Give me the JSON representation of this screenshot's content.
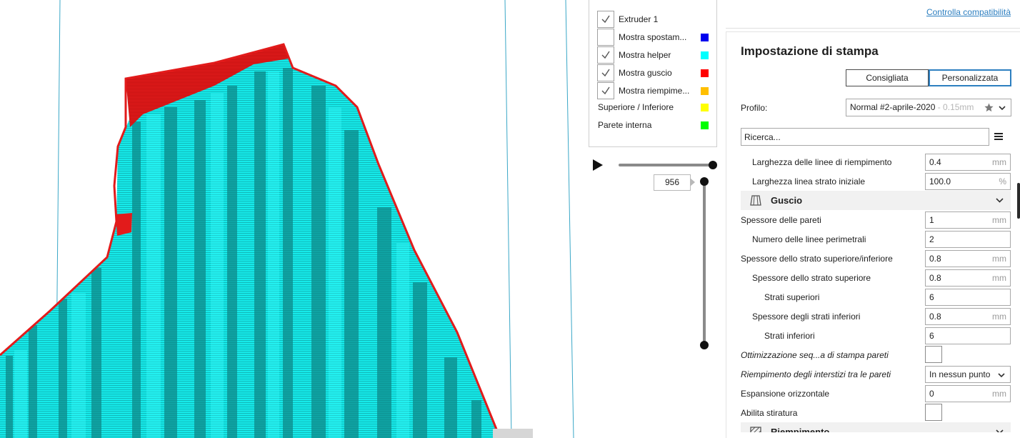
{
  "legend": {
    "items": [
      {
        "label": "Extruder 1",
        "checked": true,
        "color": ""
      },
      {
        "label": "Mostra spostam...",
        "checked": false,
        "color": "#0000ee"
      },
      {
        "label": "Mostra helper",
        "checked": true,
        "color": "#00ffff"
      },
      {
        "label": "Mostra guscio",
        "checked": true,
        "color": "#ff0000"
      },
      {
        "label": "Mostra riempime...",
        "checked": true,
        "color": "#ffbf00"
      }
    ],
    "static_items": [
      {
        "label": "Superiore / Inferiore",
        "color": "#ffff00"
      },
      {
        "label": "Parete interna",
        "color": "#00ff00"
      }
    ]
  },
  "layer_slider": {
    "value": "956"
  },
  "header": {
    "compat_link": "Controlla compatibilità"
  },
  "panel": {
    "title": "Impostazione di stampa",
    "mode_recommended": "Consigliata",
    "mode_custom": "Personalizzata",
    "profile_label": "Profilo:",
    "profile_name": "Normal #2-aprile-2020",
    "profile_sub": " - 0.15mm",
    "search_placeholder": "Ricerca..."
  },
  "settings": [
    {
      "kind": "field",
      "label": "Larghezza delle linee di riempimento",
      "indent": 1,
      "value": "0.4",
      "unit": "mm"
    },
    {
      "kind": "field",
      "label": "Larghezza linea strato iniziale",
      "indent": 1,
      "value": "100.0",
      "unit": "%"
    },
    {
      "kind": "category",
      "label": "Guscio",
      "icon": "shell-icon"
    },
    {
      "kind": "field",
      "label": "Spessore delle pareti",
      "indent": 0,
      "value": "1",
      "unit": "mm"
    },
    {
      "kind": "field",
      "label": "Numero delle linee perimetrali",
      "indent": 1,
      "value": "2",
      "unit": ""
    },
    {
      "kind": "field",
      "label": "Spessore dello strato superiore/inferiore",
      "indent": 0,
      "value": "0.8",
      "unit": "mm"
    },
    {
      "kind": "field",
      "label": "Spessore dello strato superiore",
      "indent": 1,
      "value": "0.8",
      "unit": "mm"
    },
    {
      "kind": "field",
      "label": "Strati superiori",
      "indent": 2,
      "value": "6",
      "unit": ""
    },
    {
      "kind": "field",
      "label": "Spessore degli strati inferiori",
      "indent": 1,
      "value": "0.8",
      "unit": "mm"
    },
    {
      "kind": "field",
      "label": "Strati inferiori",
      "indent": 2,
      "value": "6",
      "unit": ""
    },
    {
      "kind": "checkbox",
      "label": "Ottimizzazione seq...a di stampa pareti",
      "indent": 0,
      "italic": true
    },
    {
      "kind": "dropdown",
      "label": "Riempimento degli interstizi tra le pareti",
      "indent": 0,
      "italic": true,
      "value": "In nessun punto"
    },
    {
      "kind": "field",
      "label": "Espansione orizzontale",
      "indent": 0,
      "value": "0",
      "unit": "mm"
    },
    {
      "kind": "checkbox",
      "label": "Abilita stiratura",
      "indent": 0
    },
    {
      "kind": "category",
      "label": "Riempimento",
      "icon": "infill-icon"
    }
  ],
  "colors": {
    "helper": "#00f0f0",
    "shell": "#e21b1b",
    "accent": "#2d7fc0"
  }
}
